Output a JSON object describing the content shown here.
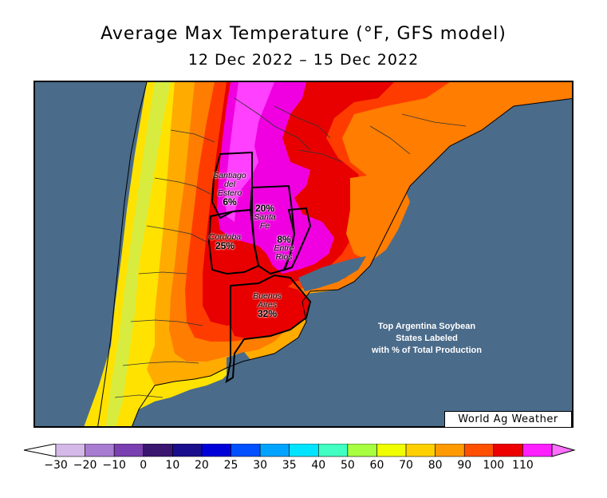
{
  "title": "Average Max Temperature (°F, GFS model)",
  "subtitle": "12 Dec 2022 – 15 Dec 2022",
  "credit": "World Ag Weather",
  "note_lines": [
    "Top Argentina Soybean",
    "States Labeled",
    "with % of Total Production"
  ],
  "states": [
    {
      "name_lines": [
        "Santiago",
        "del",
        "Estero"
      ],
      "pct": "6%"
    },
    {
      "name_lines": [
        "Santa",
        "Fe"
      ],
      "pct": "20%"
    },
    {
      "name_lines": [
        "Cordoba"
      ],
      "pct": "25%"
    },
    {
      "name_lines": [
        "Entre",
        "Rios"
      ],
      "pct": "8%"
    },
    {
      "name_lines": [
        "Buenos",
        "Aires"
      ],
      "pct": "32%"
    }
  ],
  "colorbar": {
    "ticks": [
      "−30",
      "−20",
      "−10",
      "0",
      "10",
      "20",
      "25",
      "30",
      "35",
      "40",
      "50",
      "60",
      "70",
      "80",
      "90",
      "100",
      "110"
    ],
    "colors": [
      "#d4b8e8",
      "#a87cd0",
      "#7a3fb0",
      "#3a1670",
      "#1a0e8c",
      "#0000d8",
      "#0050ff",
      "#00a4ff",
      "#00e4ff",
      "#40ffc0",
      "#a8ff40",
      "#f0ff00",
      "#ffd000",
      "#ff9a00",
      "#ff5000",
      "#ee0000",
      "#ff20ff"
    ],
    "under_color": "#ffffff",
    "over_color": "#ff70ff"
  },
  "colors": {
    "ocean": "#4a6b8a",
    "t70": "#ffe200",
    "t80": "#ffab00",
    "t85": "#ff7d00",
    "t90": "#ff3c00",
    "t95": "#e80000",
    "t100": "#f000e0",
    "t105": "#ff30ff"
  }
}
